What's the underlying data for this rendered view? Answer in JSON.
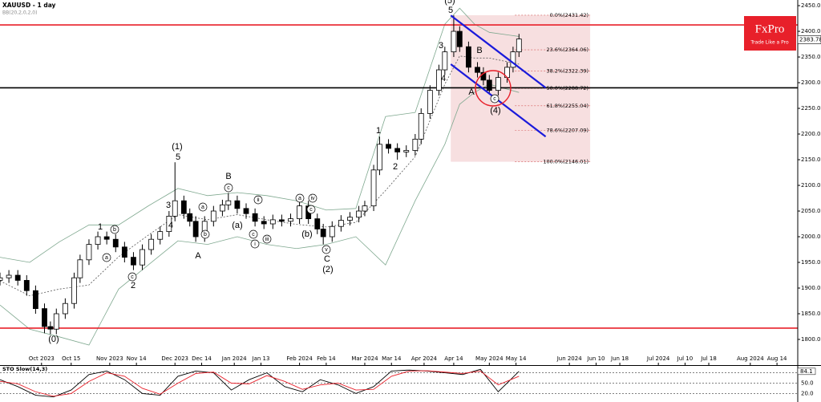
{
  "chart_data": {
    "type": "candlestick",
    "title": "XAUUSD - 1 day",
    "xlim": [
      0,
      269
    ],
    "ylim": [
      1750,
      2461
    ],
    "xticks": [
      {
        "value": 14,
        "label": "Oct 2023"
      },
      {
        "value": 24,
        "label": "Oct 15"
      },
      {
        "value": 37,
        "label": "Nov 2023"
      },
      {
        "value": 46,
        "label": "Nov 14"
      },
      {
        "value": 59,
        "label": "Dec 2023"
      },
      {
        "value": 68,
        "label": "Dec 14"
      },
      {
        "value": 79,
        "label": "Jan 2024"
      },
      {
        "value": 88,
        "label": "Jan 13"
      },
      {
        "value": 101,
        "label": "Feb 2024"
      },
      {
        "value": 110,
        "label": "Feb 14"
      },
      {
        "value": 123,
        "label": "Mar 2024"
      },
      {
        "value": 132,
        "label": "Mar 14"
      },
      {
        "value": 143,
        "label": "Apr 2024"
      },
      {
        "value": 153,
        "label": "Apr 14"
      },
      {
        "value": 165,
        "label": "May 2024"
      },
      {
        "value": 174,
        "label": "May 14"
      },
      {
        "value": 192,
        "label": "Jun 2024"
      },
      {
        "value": 201,
        "label": "Jun 10"
      },
      {
        "value": 209,
        "label": "Jun 18"
      },
      {
        "value": 222,
        "label": "Jul 2024"
      },
      {
        "value": 231,
        "label": "Jul 10"
      },
      {
        "value": 239,
        "label": "Jul 18"
      },
      {
        "value": 253,
        "label": "Aug 2024"
      },
      {
        "value": 262,
        "label": "Aug 14"
      }
    ],
    "yticks": [
      {
        "value": 2450,
        "label": "2450.00"
      },
      {
        "value": 2400,
        "label": "2400.00"
      },
      {
        "value": 2350,
        "label": "2350.00"
      },
      {
        "value": 2300,
        "label": "2300.00"
      },
      {
        "value": 2250,
        "label": "2250.00"
      },
      {
        "value": 2200,
        "label": "2200.00"
      },
      {
        "value": 2150,
        "label": "2150.00"
      },
      {
        "value": 2100,
        "label": "2100.00"
      },
      {
        "value": 2050,
        "label": "2050.00"
      },
      {
        "value": 2000,
        "label": "2000.00"
      },
      {
        "value": 1950,
        "label": "1950.00"
      },
      {
        "value": 1900,
        "label": "1900.00"
      },
      {
        "value": 1850,
        "label": "1850.00"
      },
      {
        "value": 1800,
        "label": "1800.00"
      }
    ],
    "last_price": 2383.78,
    "candles": {
      "up_color": "#ffffff",
      "down_color": "#000000",
      "x": [
        0,
        3,
        6,
        9,
        12,
        15,
        17,
        19,
        22,
        25,
        27,
        30,
        33,
        36,
        39,
        42,
        45,
        48,
        51,
        54,
        57,
        59,
        62,
        64,
        66,
        69,
        72,
        75,
        77,
        80,
        83,
        86,
        89,
        92,
        95,
        98,
        101,
        104,
        107,
        109,
        112,
        115,
        118,
        121,
        123,
        126,
        128,
        131,
        134,
        137,
        140,
        142,
        145,
        148,
        150,
        153,
        155,
        158,
        161,
        163,
        165,
        168,
        171,
        173,
        175
      ],
      "open": [
        1915,
        1920,
        1925,
        1915,
        1895,
        1860,
        1825,
        1820,
        1850,
        1870,
        1920,
        1955,
        1985,
        2000,
        1995,
        1980,
        1960,
        1945,
        1975,
        1995,
        2010,
        2040,
        2070,
        2045,
        2030,
        2000,
        2030,
        2050,
        2062,
        2070,
        2055,
        2045,
        2030,
        2025,
        2033,
        2030,
        2035,
        2060,
        2035,
        2015,
        2000,
        2020,
        2032,
        2038,
        2050,
        2060,
        2130,
        2180,
        2172,
        2165,
        2168,
        2190,
        2240,
        2285,
        2325,
        2360,
        2400,
        2370,
        2330,
        2320,
        2305,
        2285,
        2310,
        2330,
        2360
      ],
      "high": [
        1930,
        1935,
        1935,
        1925,
        1905,
        1870,
        1835,
        1860,
        1880,
        1930,
        1965,
        1995,
        2010,
        2010,
        2005,
        1990,
        1970,
        1985,
        2005,
        2020,
        2050,
        2145,
        2080,
        2055,
        2040,
        2040,
        2060,
        2072,
        2085,
        2080,
        2065,
        2055,
        2040,
        2043,
        2043,
        2045,
        2070,
        2070,
        2045,
        2025,
        2030,
        2042,
        2048,
        2060,
        2070,
        2140,
        2195,
        2190,
        2182,
        2178,
        2200,
        2250,
        2295,
        2335,
        2370,
        2431,
        2410,
        2380,
        2340,
        2330,
        2315,
        2320,
        2340,
        2370,
        2395
      ],
      "low": [
        1905,
        1910,
        1905,
        1885,
        1850,
        1812,
        1810,
        1810,
        1840,
        1860,
        1910,
        1945,
        1975,
        1985,
        1970,
        1950,
        1935,
        1935,
        1965,
        1985,
        2000,
        2030,
        2035,
        2020,
        1990,
        1990,
        2020,
        2040,
        2052,
        2045,
        2035,
        2020,
        2015,
        2015,
        2020,
        2020,
        2025,
        2025,
        2005,
        1985,
        1990,
        2010,
        2022,
        2028,
        2040,
        2050,
        2120,
        2162,
        2150,
        2155,
        2158,
        2180,
        2230,
        2275,
        2315,
        2350,
        2360,
        2320,
        2310,
        2295,
        2278,
        2275,
        2300,
        2320,
        2350
      ],
      "close": [
        1920,
        1925,
        1915,
        1895,
        1860,
        1825,
        1820,
        1850,
        1870,
        1920,
        1955,
        1985,
        2000,
        1995,
        1980,
        1960,
        1945,
        1975,
        1995,
        2010,
        2040,
        2070,
        2045,
        2030,
        2000,
        2030,
        2050,
        2062,
        2070,
        2055,
        2045,
        2030,
        2025,
        2033,
        2030,
        2035,
        2060,
        2035,
        2015,
        2000,
        2020,
        2032,
        2038,
        2050,
        2060,
        2130,
        2180,
        2172,
        2165,
        2168,
        2190,
        2240,
        2285,
        2325,
        2360,
        2400,
        2370,
        2330,
        2320,
        2305,
        2285,
        2310,
        2330,
        2360,
        2385
      ]
    },
    "bands": {
      "name": "BB(20,2,0,2,0)",
      "color": "#7fa88f",
      "middle_color": "#555555",
      "x": [
        0,
        10,
        20,
        30,
        40,
        50,
        60,
        70,
        80,
        90,
        100,
        110,
        120,
        130,
        140,
        150,
        155,
        160,
        165,
        175
      ],
      "upper": [
        1960,
        1950,
        1990,
        2023,
        2023,
        2060,
        2094,
        2080,
        2086,
        2080,
        2070,
        2052,
        2055,
        2234,
        2242,
        2414,
        2445,
        2414,
        2398,
        2390
      ],
      "middle": [
        1914,
        1885,
        1898,
        1906,
        1961,
        2003,
        2043,
        2033,
        2043,
        2033,
        2024,
        2019,
        2028,
        2090,
        2156,
        2297,
        2352,
        2348,
        2348,
        2336
      ],
      "lower": [
        1867,
        1820,
        1805,
        1789,
        1898,
        1945,
        1992,
        1985,
        2000,
        1985,
        1977,
        1985,
        2000,
        1945,
        2070,
        2180,
        2258,
        2281,
        2297,
        2281
      ]
    },
    "hlines": [
      {
        "value": 2412.5,
        "color": "#e8202a"
      },
      {
        "value": 2290,
        "color": "#000000"
      },
      {
        "value": 1822,
        "color": "#e8202a"
      }
    ],
    "fibonacci": {
      "x": [
        152,
        199
      ],
      "color": "#f7dfe0",
      "levels": [
        {
          "value": 2431.42,
          "label": "0.0%(2431.42)"
        },
        {
          "value": 2364.06,
          "label": "23.6%(2364.06)"
        },
        {
          "value": 2322.39,
          "label": "38.2%(2322.39)"
        },
        {
          "value": 2288.72,
          "label": "50.0%(2288.72)"
        },
        {
          "value": 2255.04,
          "label": "61.8%(2255.04)"
        },
        {
          "value": 2207.09,
          "label": "78.6%(2207.09)"
        },
        {
          "value": 2146.01,
          "label": "100.0%(2146.01)"
        }
      ]
    },
    "trendlines": {
      "color": "#1a1adb",
      "lines": [
        {
          "x": [
            152,
            184
          ],
          "y": [
            2431,
            2290
          ]
        },
        {
          "x": [
            152,
            184
          ],
          "y": [
            2336,
            2195
          ]
        }
      ]
    },
    "annotations": [
      "(5)",
      "5",
      "3",
      "4",
      "B",
      "A",
      "c",
      "(4)",
      "1",
      "2",
      "(1)",
      "5",
      "3",
      "4",
      "B",
      "c",
      "A",
      "1",
      "b",
      "a",
      "c",
      "2",
      "(0)",
      "a",
      "b",
      "(a)",
      "ii",
      "i",
      "iii",
      "c",
      "a",
      "iv",
      "c",
      "(b)",
      "v",
      "C",
      "(2)"
    ],
    "oscillator": {
      "title": "STO Slow(14,3)",
      "ylim": [
        0,
        100
      ],
      "yticks": [
        {
          "value": 80,
          "label": "80.0"
        },
        {
          "value": 50,
          "label": "50.0"
        },
        {
          "value": 20,
          "label": "20.0"
        }
      ],
      "last_value": 84.1,
      "x": [
        0,
        6,
        12,
        18,
        24,
        30,
        36,
        42,
        48,
        54,
        60,
        66,
        72,
        78,
        84,
        90,
        96,
        102,
        108,
        114,
        120,
        126,
        132,
        138,
        144,
        150,
        156,
        162,
        168,
        175
      ],
      "series": [
        {
          "name": "%K",
          "color": "#000000",
          "values": [
            60,
            40,
            15,
            10,
            30,
            75,
            85,
            60,
            20,
            15,
            70,
            85,
            80,
            30,
            60,
            80,
            40,
            25,
            60,
            45,
            20,
            40,
            85,
            88,
            85,
            80,
            75,
            90,
            25,
            84.1
          ]
        },
        {
          "name": "%D",
          "color": "#e8202a",
          "values": [
            55,
            48,
            25,
            12,
            20,
            55,
            80,
            70,
            35,
            18,
            50,
            78,
            82,
            50,
            48,
            72,
            55,
            32,
            45,
            50,
            30,
            32,
            70,
            85,
            86,
            82,
            78,
            85,
            45,
            70
          ]
        }
      ]
    }
  },
  "logo": {
    "name": "FxPro",
    "tagline": "Trade Like a Pro"
  }
}
